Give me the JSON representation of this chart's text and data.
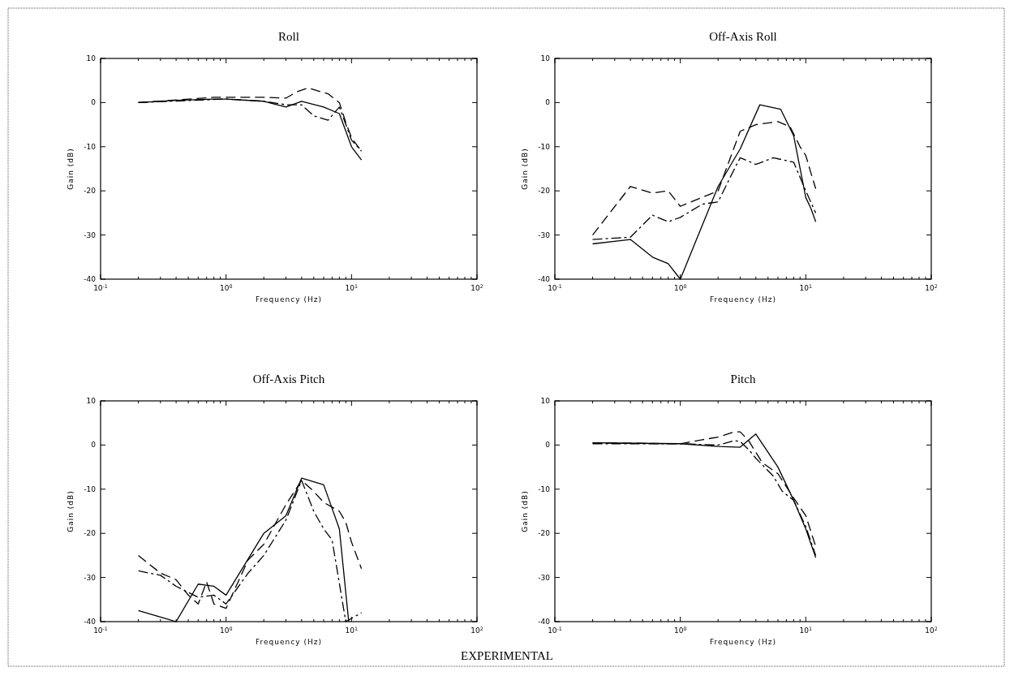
{
  "chart_data": [
    {
      "type": "line",
      "title": "Roll",
      "xlabel": "Frequency (Hz)",
      "ylabel": "Gain (dB)",
      "log": "x",
      "xlim": [
        0.1,
        100
      ],
      "ylim": [
        -40,
        10
      ],
      "xticks": [
        {
          "value": 0.1,
          "label": "10$^{-1}$"
        },
        {
          "value": 1,
          "label": "10$^{0}$"
        },
        {
          "value": 10,
          "label": "10$^{1}$"
        },
        {
          "value": 100,
          "label": "10$^{2}$"
        }
      ],
      "yticks": [
        -40,
        -30,
        -20,
        -10,
        0,
        10
      ],
      "series": [
        {
          "color": "#000000",
          "line_style": "solid",
          "x": [
            0.2,
            0.4,
            0.8,
            1,
            2,
            3,
            4,
            6,
            8,
            10,
            12
          ],
          "values": [
            0,
            0.5,
            0.8,
            0.8,
            0.3,
            -1,
            0.3,
            -1,
            -2.5,
            -10,
            -13
          ]
        },
        {
          "color": "#000000",
          "line_style": "dashed",
          "x": [
            0.2,
            0.8,
            1,
            2,
            3,
            3.7,
            4.5,
            6.5,
            8,
            9,
            10,
            12
          ],
          "values": [
            0,
            1.2,
            1.2,
            1.2,
            1,
            2.5,
            3.3,
            2,
            0,
            -4.5,
            -8,
            -11
          ]
        },
        {
          "color": "#000000",
          "line_style": "dashdot",
          "x": [
            0.2,
            1,
            2,
            3,
            4,
            5,
            6.5,
            8,
            10,
            12
          ],
          "values": [
            0,
            0.8,
            0.3,
            -0.5,
            -0.5,
            -3,
            -4,
            -1,
            -8.5,
            -11
          ]
        }
      ]
    },
    {
      "type": "line",
      "title": "Off-Axis Roll",
      "xlabel": "Frequency (Hz)",
      "ylabel": "Gain (dB)",
      "log": "x",
      "xlim": [
        0.1,
        100
      ],
      "ylim": [
        -40,
        10
      ],
      "xticks": [
        {
          "value": 0.1,
          "label": "10$^{-1}$"
        },
        {
          "value": 1,
          "label": "10$^{0}$"
        },
        {
          "value": 10,
          "label": "10$^{1}$"
        },
        {
          "value": 100,
          "label": "10$^{2}$"
        }
      ],
      "yticks": [
        -40,
        -30,
        -20,
        -10,
        0,
        10
      ],
      "series": [
        {
          "color": "#000000",
          "line_style": "solid",
          "x": [
            0.2,
            0.4,
            0.6,
            0.8,
            1,
            2,
            3,
            4.3,
            6.3,
            8,
            10,
            11,
            12
          ],
          "values": [
            -32,
            -31,
            -35,
            -36.5,
            -40,
            -19,
            -10.5,
            -0.5,
            -1.5,
            -7.5,
            -21.5,
            -24,
            -27
          ]
        },
        {
          "color": "#000000",
          "line_style": "dashed",
          "x": [
            0.2,
            0.4,
            0.6,
            0.8,
            1,
            2,
            2.7,
            3,
            4,
            6,
            7.5,
            9,
            10,
            11,
            12
          ],
          "values": [
            -30,
            -19,
            -20.5,
            -20,
            -23.5,
            -20,
            -10,
            -6.5,
            -5,
            -4.3,
            -5.5,
            -10,
            -12,
            -16,
            -19.5
          ]
        },
        {
          "color": "#000000",
          "line_style": "dashdot",
          "x": [
            0.2,
            0.4,
            0.6,
            0.8,
            1,
            1.5,
            2,
            2.7,
            3,
            4,
            5.5,
            8,
            10,
            12
          ],
          "values": [
            -31,
            -30.5,
            -25.5,
            -27,
            -26,
            -23,
            -22.5,
            -15,
            -12.5,
            -14,
            -12.5,
            -13.5,
            -20,
            -25
          ]
        }
      ]
    },
    {
      "type": "line",
      "title": "Off-Axis Pitch",
      "xlabel": "Frequency (Hz)",
      "ylabel": "Gain (dB)",
      "log": "x",
      "xlim": [
        0.1,
        100
      ],
      "ylim": [
        -40,
        10
      ],
      "xticks": [
        {
          "value": 0.1,
          "label": "10$^{-1}$"
        },
        {
          "value": 1,
          "label": "10$^{0}$"
        },
        {
          "value": 10,
          "label": "10$^{1}$"
        },
        {
          "value": 100,
          "label": "10$^{2}$"
        }
      ],
      "yticks": [
        -40,
        -30,
        -20,
        -10,
        0,
        10
      ],
      "series": [
        {
          "color": "#000000",
          "line_style": "solid",
          "x": [
            0.2,
            0.4,
            0.6,
            0.8,
            1,
            2,
            3,
            4,
            6,
            8,
            9.5
          ],
          "values": [
            -37.5,
            -40,
            -31.5,
            -32,
            -34,
            -20,
            -16,
            -7.5,
            -9,
            -19,
            -40
          ]
        },
        {
          "color": "#000000",
          "line_style": "dashed",
          "x": [
            0.2,
            0.3,
            0.4,
            0.5,
            0.6,
            0.7,
            0.8,
            1,
            1.5,
            2,
            3,
            4,
            5,
            6,
            8,
            9,
            10,
            12
          ],
          "values": [
            -25,
            -29,
            -30.5,
            -34,
            -36,
            -31,
            -36,
            -37,
            -26,
            -22.5,
            -13.5,
            -8,
            -10.5,
            -13,
            -15,
            -17.5,
            -22,
            -28
          ]
        },
        {
          "color": "#000000",
          "line_style": "dashdot",
          "x": [
            0.2,
            0.3,
            0.4,
            0.6,
            0.8,
            1,
            1.5,
            2,
            3,
            4,
            5,
            6,
            7,
            9,
            12
          ],
          "values": [
            -28.5,
            -29.5,
            -32,
            -34.5,
            -34,
            -36,
            -29,
            -25,
            -17,
            -8,
            -15,
            -19,
            -21.5,
            -40,
            -38
          ]
        }
      ]
    },
    {
      "type": "line",
      "title": "Pitch",
      "xlabel": "Frequency (Hz)",
      "ylabel": "Gain (dB)",
      "log": "x",
      "xlim": [
        0.1,
        100
      ],
      "ylim": [
        -40,
        10
      ],
      "xticks": [
        {
          "value": 0.1,
          "label": "10$^{-1}$"
        },
        {
          "value": 1,
          "label": "10$^{0}$"
        },
        {
          "value": 10,
          "label": "10$^{1}$"
        },
        {
          "value": 100,
          "label": "10$^{2}$"
        }
      ],
      "yticks": [
        -40,
        -30,
        -20,
        -10,
        0,
        10
      ],
      "annotations": [
        "EXPERIMENTAL"
      ],
      "series": [
        {
          "color": "#000000",
          "line_style": "solid",
          "x": [
            0.2,
            1,
            2,
            3,
            4,
            6,
            8,
            10,
            12
          ],
          "values": [
            0.5,
            0.3,
            -0.3,
            -0.5,
            2.5,
            -5,
            -12.5,
            -19,
            -25.5
          ]
        },
        {
          "color": "#000000",
          "line_style": "dashed",
          "x": [
            0.2,
            1,
            1.5,
            2,
            2.7,
            3,
            3.5,
            4.5,
            6,
            8,
            10,
            12
          ],
          "values": [
            0.5,
            0.3,
            1.2,
            1.8,
            3,
            3,
            1,
            -4,
            -6.5,
            -12,
            -16,
            -23
          ]
        },
        {
          "color": "#000000",
          "line_style": "dashdot",
          "x": [
            0.2,
            1,
            2,
            2.7,
            3,
            3.5,
            4,
            5.5,
            6.5,
            8,
            10,
            12
          ],
          "values": [
            0.3,
            0.3,
            0,
            1,
            0.8,
            -1,
            -3,
            -7,
            -10.5,
            -12.5,
            -18.5,
            -25
          ]
        }
      ]
    }
  ]
}
